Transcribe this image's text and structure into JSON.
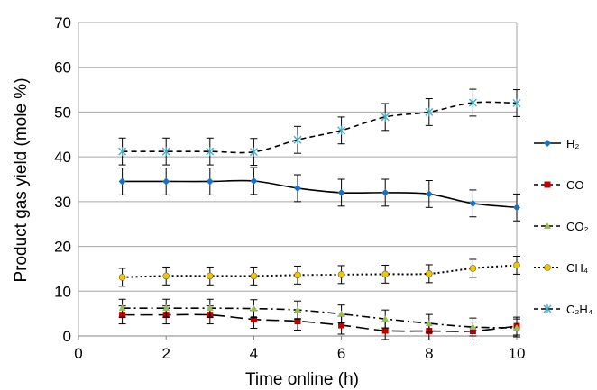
{
  "chart_data": {
    "type": "line",
    "xlabel": "Time online (h)",
    "ylabel": "Product gas yield (mole %)",
    "xlim": [
      0,
      10
    ],
    "ylim": [
      0,
      70
    ],
    "x_ticks": [
      "0",
      "2",
      "4",
      "6",
      "8",
      "10"
    ],
    "y_ticks": [
      "0",
      "10",
      "20",
      "30",
      "40",
      "50",
      "60",
      "70"
    ],
    "grid": "horizontal",
    "legend_position": "right",
    "x": [
      1,
      2,
      3,
      4,
      5,
      6,
      7,
      8,
      9,
      10
    ],
    "series": [
      {
        "name": "H₂",
        "values": [
          34.5,
          34.5,
          34.5,
          34.6,
          33.0,
          32.0,
          32.0,
          31.7,
          29.6,
          28.7
        ],
        "errors": [
          3,
          3,
          3,
          3,
          3,
          3,
          3,
          3,
          3,
          3
        ],
        "color": "#1f6fbf",
        "marker": "diamond",
        "dash": "solid"
      },
      {
        "name": "CO",
        "values": [
          4.7,
          4.7,
          4.7,
          3.7,
          3.3,
          2.4,
          1.2,
          1.1,
          1.1,
          2.2
        ],
        "errors": [
          2,
          2,
          2,
          2,
          2,
          2,
          2,
          2,
          2,
          2
        ],
        "color": "#c00000",
        "marker": "square",
        "dash": "long-dash"
      },
      {
        "name": "CO₂",
        "values": [
          6.2,
          6.2,
          6.2,
          6.1,
          5.8,
          4.9,
          3.8,
          2.8,
          2.0,
          1.8
        ],
        "errors": [
          2,
          2,
          2,
          2,
          2,
          2,
          2,
          2,
          2,
          2
        ],
        "color": "#9bbb59",
        "marker": "triangle",
        "dash": "dash-dot"
      },
      {
        "name": "CH₄",
        "values": [
          13.1,
          13.4,
          13.4,
          13.4,
          13.6,
          13.7,
          13.8,
          13.9,
          15.1,
          15.8
        ],
        "errors": [
          2,
          2,
          2,
          2,
          2,
          2,
          2,
          2,
          2,
          2
        ],
        "color": "#e6c619",
        "marker": "circle",
        "dash": "dotted"
      },
      {
        "name": "C₂H₄",
        "values": [
          41.2,
          41.2,
          41.2,
          41.1,
          43.8,
          45.9,
          48.9,
          50.0,
          52.1,
          52.0
        ],
        "errors": [
          3,
          3,
          3,
          3,
          3,
          3,
          3,
          3,
          3,
          3
        ],
        "color": "#4bacc6",
        "marker": "star",
        "dash": "short-dash"
      }
    ]
  }
}
